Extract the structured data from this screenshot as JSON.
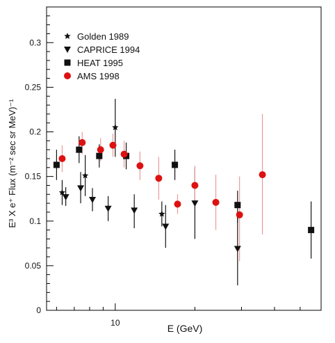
{
  "chart_data": {
    "type": "scatter",
    "xlabel": "E (GeV)",
    "ylabel": "E³ X e⁺ Flux (m⁻² sec sr MeV)⁻¹",
    "x_scale": "log",
    "xlim": [
      5.5,
      60
    ],
    "ylim": [
      0,
      0.34
    ],
    "yticks": [
      0,
      0.05,
      0.1,
      0.15,
      0.2,
      0.25,
      0.3
    ],
    "ytick_labels": [
      "0",
      "0.05",
      "0.1",
      "0.15",
      "0.2",
      "0.25",
      "0.3"
    ],
    "xticks": [
      10
    ],
    "xtick_labels": [
      "10"
    ],
    "legend_position": "top-center",
    "colors": {
      "black": "#111111",
      "red": "#dd1111",
      "red_error": "#e89a9a",
      "axis": "#000000"
    },
    "series": [
      {
        "name": "Golden 1989",
        "marker": "star",
        "color": "#111111",
        "points": [
          {
            "x": 6.3,
            "y": 0.132,
            "ylo": 0.118,
            "yhi": 0.146
          },
          {
            "x": 7.7,
            "y": 0.151,
            "ylo": 0.128,
            "yhi": 0.174
          },
          {
            "x": 10.0,
            "y": 0.205,
            "ylo": 0.172,
            "yhi": 0.237
          },
          {
            "x": 15.0,
            "y": 0.108,
            "ylo": 0.094,
            "yhi": 0.122
          }
        ]
      },
      {
        "name": "CAPRICE 1994",
        "marker": "triangle-down",
        "color": "#111111",
        "points": [
          {
            "x": 6.5,
            "y": 0.127,
            "ylo": 0.117,
            "yhi": 0.138
          },
          {
            "x": 7.4,
            "y": 0.137,
            "ylo": 0.12,
            "yhi": 0.155
          },
          {
            "x": 8.2,
            "y": 0.124,
            "ylo": 0.111,
            "yhi": 0.137
          },
          {
            "x": 9.4,
            "y": 0.114,
            "ylo": 0.1,
            "yhi": 0.128
          },
          {
            "x": 11.8,
            "y": 0.112,
            "ylo": 0.092,
            "yhi": 0.13
          },
          {
            "x": 15.5,
            "y": 0.094,
            "ylo": 0.07,
            "yhi": 0.118
          },
          {
            "x": 20.0,
            "y": 0.12,
            "ylo": 0.08,
            "yhi": 0.16
          },
          {
            "x": 29.0,
            "y": 0.069,
            "ylo": 0.028,
            "yhi": 0.11
          }
        ]
      },
      {
        "name": "HEAT 1995",
        "marker": "square",
        "color": "#111111",
        "points": [
          {
            "x": 6.0,
            "y": 0.163,
            "ylo": 0.146,
            "yhi": 0.18
          },
          {
            "x": 7.3,
            "y": 0.18,
            "ylo": 0.165,
            "yhi": 0.195
          },
          {
            "x": 8.7,
            "y": 0.173,
            "ylo": 0.16,
            "yhi": 0.186
          },
          {
            "x": 11.0,
            "y": 0.173,
            "ylo": 0.158,
            "yhi": 0.188
          },
          {
            "x": 16.8,
            "y": 0.163,
            "ylo": 0.146,
            "yhi": 0.18
          },
          {
            "x": 29.0,
            "y": 0.118,
            "ylo": 0.098,
            "yhi": 0.134
          },
          {
            "x": 55.0,
            "y": 0.09,
            "ylo": 0.058,
            "yhi": 0.122
          }
        ]
      },
      {
        "name": "AMS 1998",
        "marker": "circle",
        "color": "#dd1111",
        "points": [
          {
            "x": 6.3,
            "y": 0.17,
            "ylo": 0.155,
            "yhi": 0.185
          },
          {
            "x": 7.5,
            "y": 0.188,
            "ylo": 0.175,
            "yhi": 0.2
          },
          {
            "x": 8.8,
            "y": 0.18,
            "ylo": 0.167,
            "yhi": 0.193
          },
          {
            "x": 9.8,
            "y": 0.185,
            "ylo": 0.172,
            "yhi": 0.198
          },
          {
            "x": 10.8,
            "y": 0.175,
            "ylo": 0.16,
            "yhi": 0.19
          },
          {
            "x": 12.4,
            "y": 0.162,
            "ylo": 0.146,
            "yhi": 0.178
          },
          {
            "x": 14.6,
            "y": 0.148,
            "ylo": 0.124,
            "yhi": 0.172
          },
          {
            "x": 17.2,
            "y": 0.119,
            "ylo": 0.108,
            "yhi": 0.13
          },
          {
            "x": 20.0,
            "y": 0.14,
            "ylo": 0.118,
            "yhi": 0.162
          },
          {
            "x": 24.0,
            "y": 0.121,
            "ylo": 0.09,
            "yhi": 0.152
          },
          {
            "x": 29.5,
            "y": 0.107,
            "ylo": 0.055,
            "yhi": 0.15
          },
          {
            "x": 36.0,
            "y": 0.152,
            "ylo": 0.085,
            "yhi": 0.22
          }
        ]
      }
    ]
  }
}
